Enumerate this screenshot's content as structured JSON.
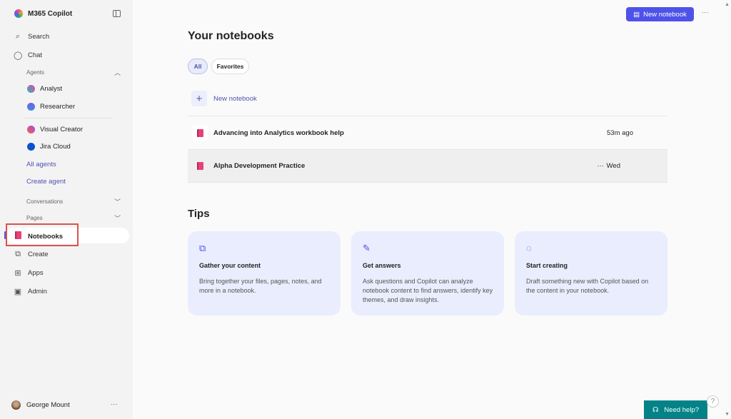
{
  "app": {
    "title": "M365 Copilot"
  },
  "sidebar": {
    "search": "Search",
    "chat": "Chat",
    "agents_label": "Agents",
    "agents": [
      {
        "label": "Analyst"
      },
      {
        "label": "Researcher"
      },
      {
        "label": "Visual Creator"
      },
      {
        "label": "Jira Cloud"
      }
    ],
    "all_agents": "All agents",
    "create_agent": "Create agent",
    "conversations": "Conversations",
    "pages": "Pages",
    "notebooks": "Notebooks",
    "create": "Create",
    "apps": "Apps",
    "admin": "Admin",
    "user": "George Mount",
    "more": "···"
  },
  "header": {
    "new_notebook": "New notebook",
    "more": "···"
  },
  "main": {
    "title": "Your notebooks",
    "filters": [
      {
        "label": "All",
        "active": true
      },
      {
        "label": "Favorites",
        "active": false
      }
    ],
    "new_notebook": "New notebook",
    "notebooks": [
      {
        "name": "Advancing into Analytics workbook help",
        "time": "53m ago"
      },
      {
        "name": "Alpha Development Practice",
        "time": "Wed",
        "more": "···"
      }
    ],
    "tips_title": "Tips",
    "tips": [
      {
        "title": "Gather your content",
        "desc": "Bring together your files, pages, notes, and more in a notebook.",
        "icon": "copy-stack-icon"
      },
      {
        "title": "Get answers",
        "desc": "Ask questions and Copilot can analyze notebook content to find answers, identify key themes, and draw insights.",
        "icon": "sparkle-pen-icon"
      },
      {
        "title": "Start creating",
        "desc": "Draft something new with Copilot based on the content in your notebook.",
        "icon": "chat-sparkle-icon"
      }
    ]
  },
  "help": {
    "label": "Need help?",
    "question": "?"
  },
  "colors": {
    "accent": "#4f52e8",
    "help": "#038387",
    "highlight_box": "#d9534f"
  }
}
